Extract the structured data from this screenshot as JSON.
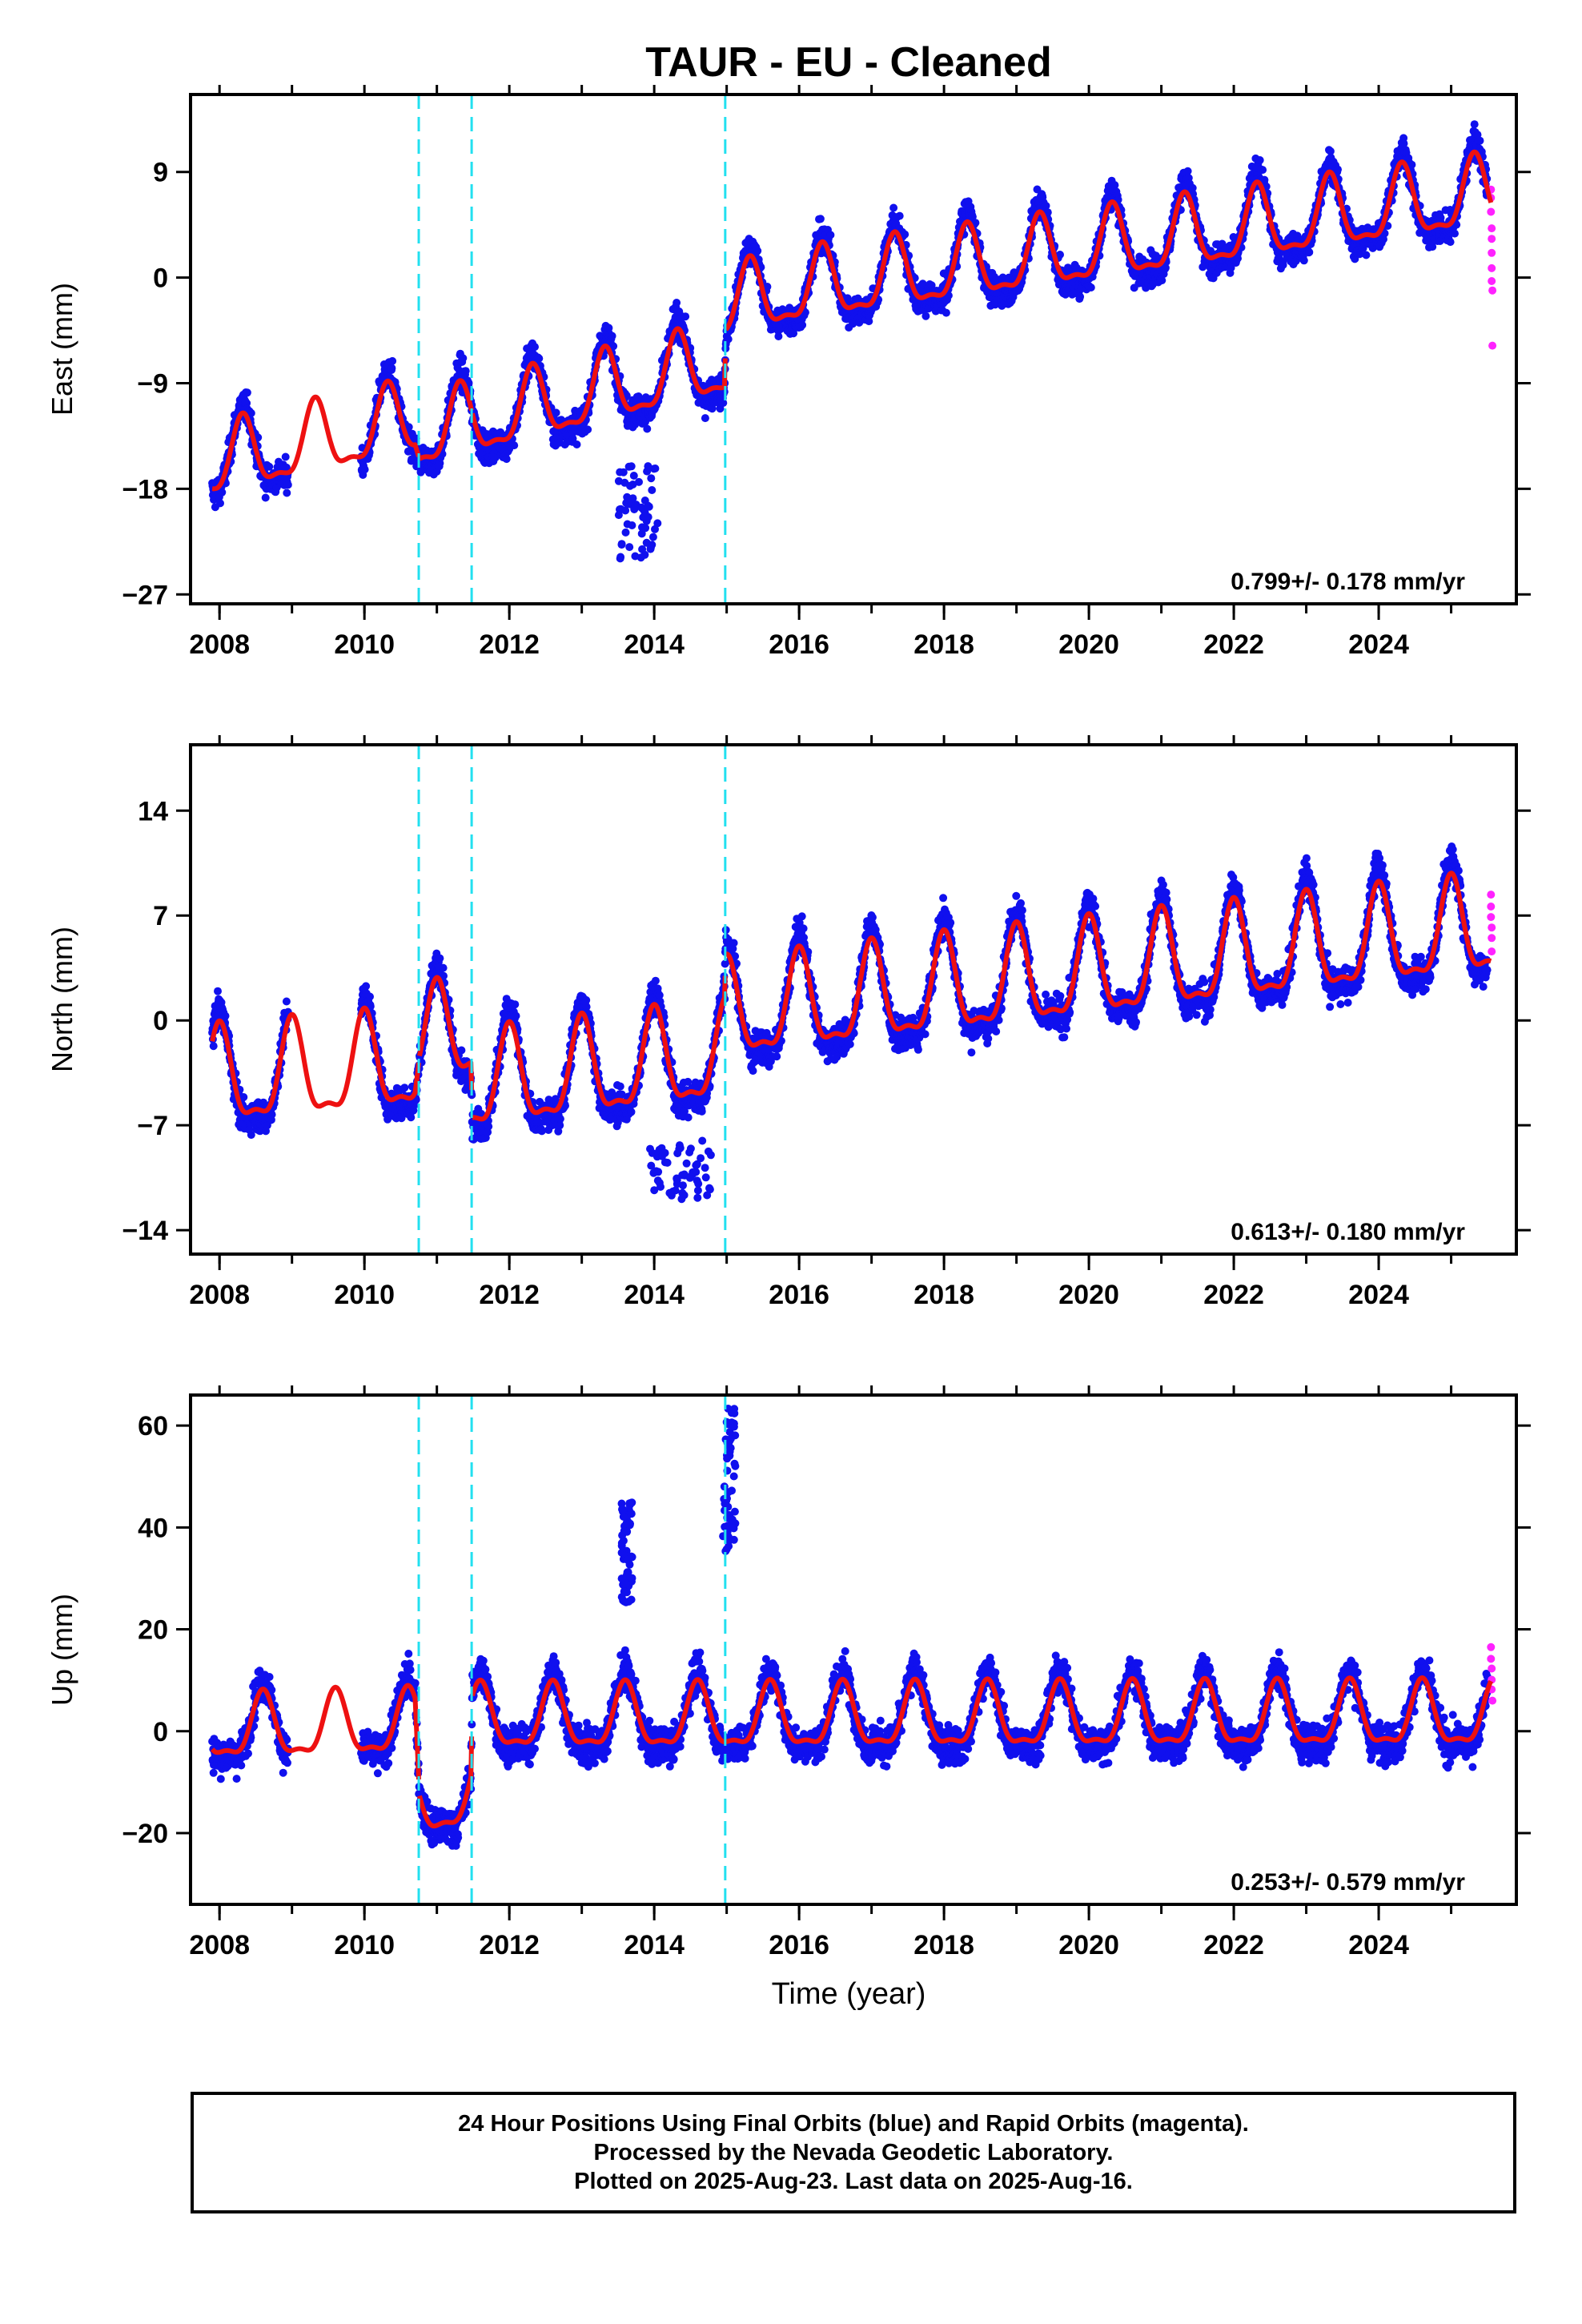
{
  "title": "TAUR  - EU - Cleaned",
  "xlabel": "Time (year)",
  "footer": {
    "line1": "24 Hour Positions Using Final Orbits (blue) and Rapid Orbits (magenta).",
    "line2": "Processed by the Nevada Geodetic Laboratory.",
    "line3": "Plotted on 2025-Aug-23. Last data on 2025-Aug-16."
  },
  "colors": {
    "final": "#1010ee",
    "rapid": "#ff22ff",
    "model": "#ee1111",
    "step": "#22e0f0"
  },
  "chart_data": [
    {
      "type": "scatter",
      "panel": "east",
      "ylabel": "East (mm)",
      "rate": "0.799+/- 0.178 mm/yr",
      "xlim": [
        2007.6,
        2025.9
      ],
      "ylim": [
        -27.8,
        15.6
      ],
      "yticks": [
        -27,
        -18,
        -9,
        0,
        9
      ],
      "xticks": [
        2008,
        2010,
        2012,
        2014,
        2016,
        2018,
        2020,
        2022,
        2024
      ],
      "steps": [
        2010.75,
        2011.48,
        2014.98
      ],
      "gaps": [
        [
          2008.95,
          2009.95
        ]
      ],
      "series": [
        {
          "name": "final",
          "trend": [
            [
              2007.9,
              -16
            ],
            [
              2010.7,
              -12.2
            ],
            [
              2010.76,
              -13.5
            ],
            [
              2014.97,
              -7.3
            ],
            [
              2014.99,
              -2.5
            ],
            [
              2015.9,
              -1.2
            ],
            [
              2025.55,
              7.0
            ]
          ],
          "amp": 3.4,
          "phase": 2008.32,
          "noise": 1.6,
          "outliers": [
            [
              2013.5,
              2014.05,
              -24,
              -16
            ]
          ]
        },
        {
          "name": "rapid",
          "points": [
            [
              2025.55,
              7.5
            ],
            [
              2025.55,
              6.8
            ],
            [
              2025.55,
              5.6
            ],
            [
              2025.56,
              4.2
            ],
            [
              2025.56,
              3.3
            ],
            [
              2025.56,
              2.1
            ],
            [
              2025.56,
              0.8
            ],
            [
              2025.56,
              -0.3
            ],
            [
              2025.57,
              -1.1
            ],
            [
              2025.57,
              -5.8
            ]
          ]
        },
        {
          "name": "model",
          "curve": true
        }
      ]
    },
    {
      "type": "scatter",
      "panel": "north",
      "ylabel": "North (mm)",
      "rate": "0.613+/- 0.180 mm/yr",
      "xlim": [
        2007.6,
        2025.9
      ],
      "ylim": [
        -15.6,
        18.4
      ],
      "yticks": [
        -14,
        -7,
        0,
        7,
        14
      ],
      "xticks": [
        2008,
        2010,
        2012,
        2014,
        2016,
        2018,
        2020,
        2022,
        2024
      ],
      "steps": [
        2010.75,
        2011.48,
        2014.98
      ],
      "gaps": [
        [
          2008.95,
          2009.95
        ]
      ],
      "series": [
        {
          "name": "final",
          "trend": [
            [
              2007.9,
              -4.2
            ],
            [
              2010.7,
              -3.0
            ],
            [
              2010.76,
              -1.5
            ],
            [
              2011.47,
              -0.8
            ],
            [
              2011.49,
              -4.5
            ],
            [
              2014.97,
              -2.5
            ],
            [
              2014.99,
              0.3
            ],
            [
              2025.55,
              6.0
            ]
          ],
          "amp": 3.6,
          "phase": 2008.0,
          "noise": 1.4,
          "outliers": [
            [
              2013.9,
              2014.8,
              -12,
              -8
            ]
          ]
        },
        {
          "name": "rapid",
          "points": [
            [
              2025.55,
              8.4
            ],
            [
              2025.55,
              7.6
            ],
            [
              2025.55,
              6.9
            ],
            [
              2025.56,
              6.2
            ],
            [
              2025.56,
              5.5
            ],
            [
              2025.56,
              4.6
            ]
          ]
        },
        {
          "name": "model",
          "curve": true
        }
      ]
    },
    {
      "type": "scatter",
      "panel": "up",
      "ylabel": "Up (mm)",
      "rate": "0.253+/- 0.579 mm/yr",
      "xlim": [
        2007.6,
        2025.9
      ],
      "ylim": [
        -34,
        66
      ],
      "yticks": [
        -20,
        0,
        20,
        40,
        60
      ],
      "xticks": [
        2008,
        2010,
        2012,
        2014,
        2016,
        2018,
        2020,
        2022,
        2024
      ],
      "steps": [
        2010.75,
        2011.48,
        2014.98
      ],
      "gaps": [
        [
          2008.95,
          2009.95
        ]
      ],
      "series": [
        {
          "name": "final",
          "trend": [
            [
              2007.9,
              0
            ],
            [
              2010.7,
              1
            ],
            [
              2010.76,
              -15
            ],
            [
              2011.47,
              -13
            ],
            [
              2011.49,
              2
            ],
            [
              2025.55,
              2.5
            ]
          ],
          "amp": 7.0,
          "phase": 2008.6,
          "noise": 4.5,
          "outliers": [
            [
              2014.95,
              2015.12,
              35,
              64
            ],
            [
              2013.55,
              2013.7,
              25,
              45
            ]
          ]
        },
        {
          "name": "rapid",
          "points": [
            [
              2025.55,
              16.5
            ],
            [
              2025.55,
              14.2
            ],
            [
              2025.56,
              12.3
            ],
            [
              2025.56,
              10.1
            ],
            [
              2025.56,
              8.2
            ],
            [
              2025.57,
              6.0
            ]
          ]
        },
        {
          "name": "model",
          "curve": true
        }
      ]
    }
  ]
}
